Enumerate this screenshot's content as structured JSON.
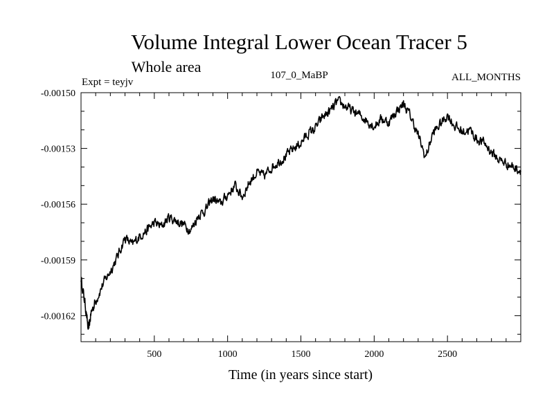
{
  "chart_data": {
    "type": "line",
    "title": "Volume Integral Lower Ocean Tracer 5",
    "subtitle": "Whole area",
    "experiment_label": "Expt = teyjv",
    "period_label": "107_0_MaBP",
    "months_label": "ALL_MONTHS",
    "xlabel": "Time (in years since start)",
    "ylabel": "",
    "xlim": [
      0,
      3000
    ],
    "ylim": [
      -0.001634,
      -0.0015
    ],
    "x_ticks": [
      500,
      1000,
      1500,
      2000,
      2500
    ],
    "x_tick_labels": [
      "500",
      "1000",
      "1500",
      "2000",
      "2500"
    ],
    "y_ticks": [
      -0.0015,
      -0.00153,
      -0.00156,
      -0.00159,
      -0.00162
    ],
    "y_tick_labels": [
      "-0.00150",
      "-0.00153",
      "-0.00156",
      "-0.00159",
      "-0.00162"
    ],
    "grid": false,
    "series": [
      {
        "name": "teyjv",
        "color": "#000000",
        "x": [
          0,
          30,
          50,
          70,
          100,
          150,
          200,
          250,
          300,
          350,
          400,
          450,
          500,
          550,
          600,
          650,
          700,
          750,
          800,
          850,
          900,
          950,
          1000,
          1050,
          1100,
          1150,
          1200,
          1250,
          1300,
          1350,
          1400,
          1450,
          1500,
          1550,
          1600,
          1650,
          1700,
          1750,
          1800,
          1850,
          1900,
          1950,
          2000,
          2050,
          2100,
          2150,
          2200,
          2250,
          2300,
          2350,
          2400,
          2450,
          2500,
          2550,
          2600,
          2650,
          2700,
          2750,
          2800,
          2850,
          2900,
          2950,
          3000
        ],
        "values": [
          -0.0016,
          -0.001615,
          -0.001628,
          -0.001618,
          -0.001612,
          -0.001603,
          -0.001596,
          -0.001588,
          -0.001578,
          -0.001582,
          -0.001577,
          -0.001574,
          -0.00157,
          -0.001572,
          -0.001567,
          -0.001569,
          -0.001571,
          -0.001574,
          -0.001566,
          -0.001563,
          -0.001557,
          -0.00156,
          -0.001555,
          -0.00155,
          -0.001556,
          -0.001548,
          -0.001543,
          -0.001545,
          -0.00154,
          -0.001537,
          -0.001534,
          -0.00153,
          -0.001527,
          -0.001522,
          -0.001519,
          -0.001513,
          -0.00151,
          -0.001505,
          -0.001507,
          -0.00151,
          -0.001512,
          -0.001515,
          -0.001518,
          -0.001514,
          -0.001516,
          -0.00151,
          -0.001506,
          -0.001513,
          -0.001523,
          -0.001535,
          -0.001522,
          -0.001517,
          -0.001512,
          -0.001518,
          -0.001521,
          -0.00152,
          -0.001525,
          -0.001527,
          -0.001532,
          -0.001536,
          -0.001538,
          -0.00154,
          -0.001542
        ]
      }
    ]
  }
}
